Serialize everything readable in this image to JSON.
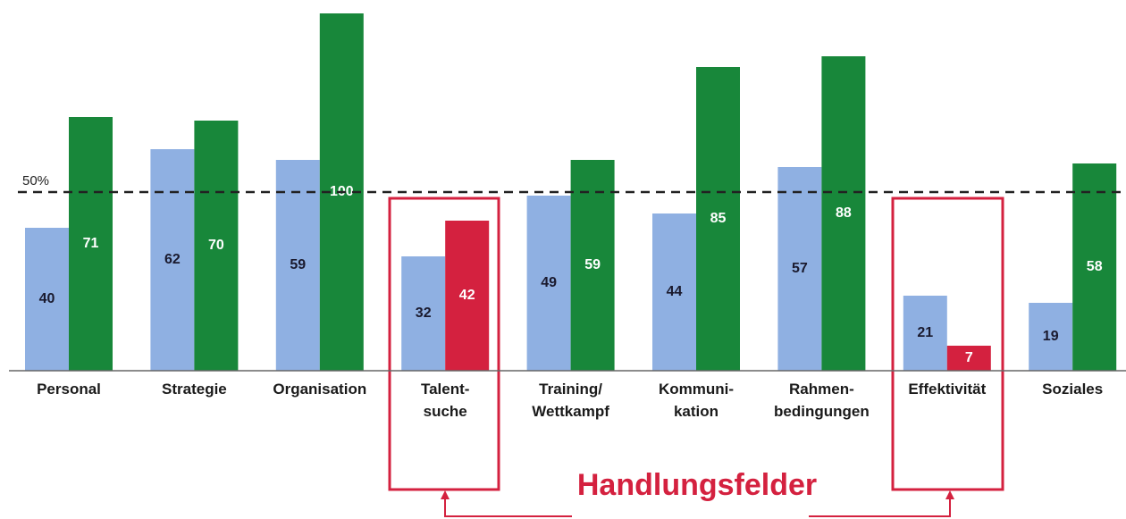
{
  "chart_data": {
    "type": "bar",
    "categories": [
      [
        "Personal"
      ],
      [
        "Strategie"
      ],
      [
        "Organisation"
      ],
      [
        "Talent-",
        "suche"
      ],
      [
        "Training/",
        "Wettkampf"
      ],
      [
        "Kommuni-",
        "kation"
      ],
      [
        "Rahmen-",
        "bedingungen"
      ],
      [
        "Effektivität"
      ],
      [
        "Soziales"
      ]
    ],
    "series": [
      {
        "color": "#8fb0e2",
        "label_color": "#1a1a2e",
        "values": [
          40,
          62,
          59,
          32,
          49,
          44,
          57,
          21,
          19
        ]
      },
      {
        "color": "#18873a",
        "colors": [
          "#18873a",
          "#18873a",
          "#18873a",
          "#d4213f",
          "#18873a",
          "#18873a",
          "#18873a",
          "#d4213f",
          "#18873a"
        ],
        "label_color": "#ffffff",
        "values": [
          71,
          70,
          100,
          42,
          59,
          85,
          88,
          7,
          58
        ]
      }
    ],
    "reference_line": {
      "value": 50,
      "label": "50%"
    },
    "annotation": "Handlungsfelder"
  }
}
